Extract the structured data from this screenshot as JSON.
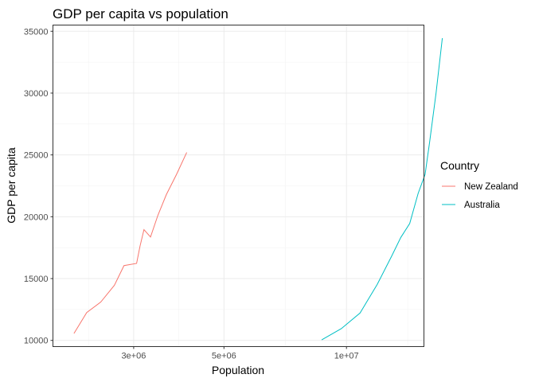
{
  "chart_data": {
    "type": "line",
    "title": "GDP per capita vs population",
    "xlabel": "Population",
    "ylabel": "GDP per capita",
    "x_scale": "log",
    "xlim": [
      1900000,
      15500000
    ],
    "ylim": [
      9500,
      35500
    ],
    "x_ticks": [
      {
        "value": 3000000,
        "label": "3e+06"
      },
      {
        "value": 5000000,
        "label": "5e+06"
      },
      {
        "value": 10000000,
        "label": "1e+07"
      }
    ],
    "y_ticks": [
      {
        "value": 10000,
        "label": "10000"
      },
      {
        "value": 15000,
        "label": "15000"
      },
      {
        "value": 20000,
        "label": "20000"
      },
      {
        "value": 25000,
        "label": "25000"
      },
      {
        "value": 30000,
        "label": "30000"
      },
      {
        "value": 35000,
        "label": "35000"
      }
    ],
    "grid": true,
    "legend": {
      "title": "Country",
      "position": "right"
    },
    "series": [
      {
        "name": "New Zealand",
        "color": "#F8766D",
        "points": [
          [
            2140000,
            10560
          ],
          [
            2300000,
            12250
          ],
          [
            2490000,
            13100
          ],
          [
            2690000,
            14460
          ],
          [
            2840000,
            16050
          ],
          [
            3050000,
            16230
          ],
          [
            3110000,
            17630
          ],
          [
            3180000,
            18960
          ],
          [
            3300000,
            18360
          ],
          [
            3440000,
            20110
          ],
          [
            3610000,
            21800
          ],
          [
            3820000,
            23400
          ],
          [
            4050000,
            25200
          ]
        ]
      },
      {
        "name": "Australia",
        "color": "#00BFC4",
        "points": [
          [
            8690000,
            10040
          ],
          [
            9710000,
            10950
          ],
          [
            10800000,
            12220
          ],
          [
            11900000,
            14530
          ],
          [
            12900000,
            16790
          ],
          [
            13600000,
            18330
          ],
          [
            14300000,
            19450
          ],
          [
            15000000,
            21890
          ],
          [
            15600000,
            23420
          ],
          [
            16000000,
            26000
          ],
          [
            16600000,
            30000
          ],
          [
            17200000,
            34440
          ]
        ]
      }
    ]
  }
}
